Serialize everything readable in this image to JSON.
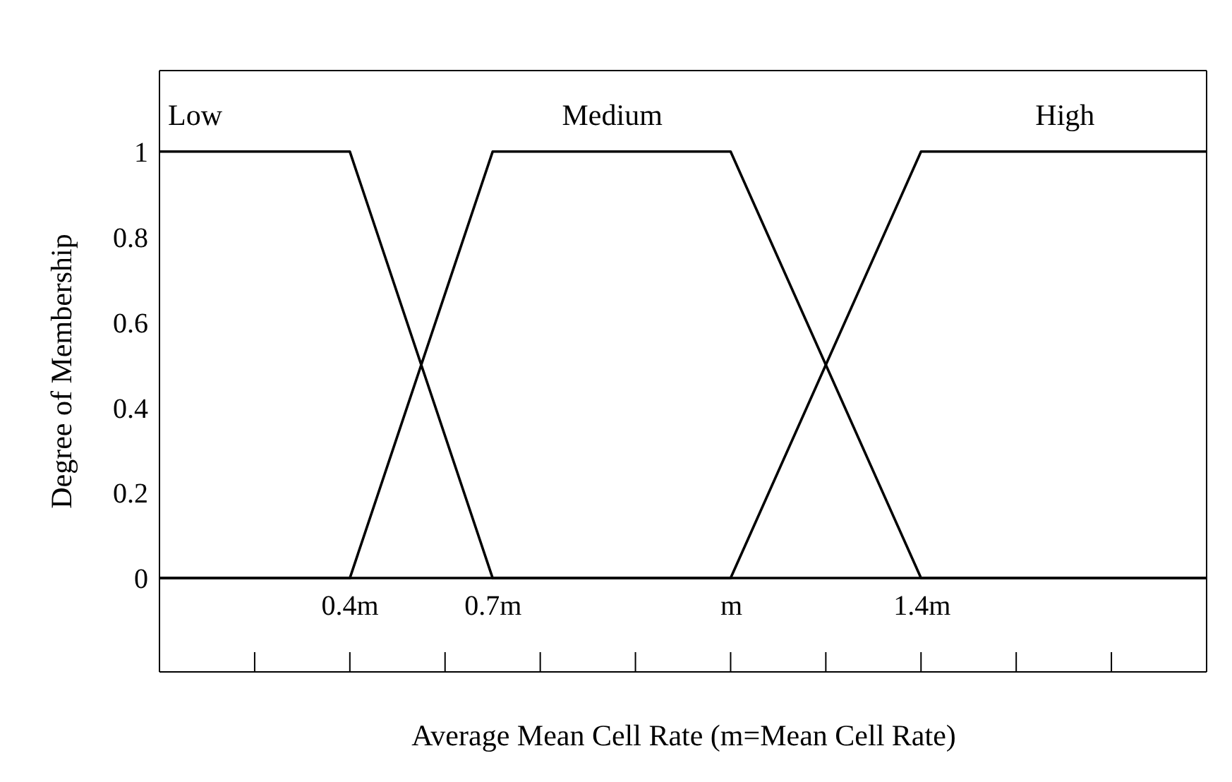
{
  "chart_data": {
    "type": "line",
    "xlabel": "Average Mean Cell Rate (m=Mean Cell Rate)",
    "ylabel": "Degree of Membership",
    "categories": [
      null,
      null,
      null,
      null,
      "0.4m",
      null,
      null,
      "0.7m",
      null,
      null,
      null,
      null,
      "m",
      null,
      null,
      null,
      "1.4m",
      null,
      null,
      null,
      null,
      null,
      null
    ],
    "ylim": [
      -0.22,
      1.19
    ],
    "yticks": [
      0,
      0.2,
      0.4,
      0.6,
      0.8,
      1
    ],
    "series": [
      {
        "name": "Low",
        "color": "#000000",
        "values": [
          1,
          null,
          null,
          null,
          1,
          null,
          null,
          0,
          null,
          null,
          null,
          null,
          null,
          null,
          null,
          null,
          null,
          null,
          null,
          null,
          null,
          null,
          0
        ]
      },
      {
        "name": "Medium",
        "color": "#000000",
        "values": [
          0,
          null,
          null,
          null,
          0,
          null,
          null,
          1,
          null,
          null,
          null,
          null,
          1,
          null,
          null,
          null,
          0,
          null,
          null,
          null,
          null,
          null,
          0
        ]
      },
      {
        "name": "High",
        "color": "#000000",
        "values": [
          0,
          null,
          null,
          null,
          null,
          null,
          null,
          null,
          null,
          null,
          null,
          null,
          0,
          null,
          null,
          null,
          1,
          null,
          null,
          null,
          null,
          null,
          1
        ]
      }
    ],
    "grid": false,
    "legend": false,
    "marker": "none",
    "line_style": "solid"
  }
}
